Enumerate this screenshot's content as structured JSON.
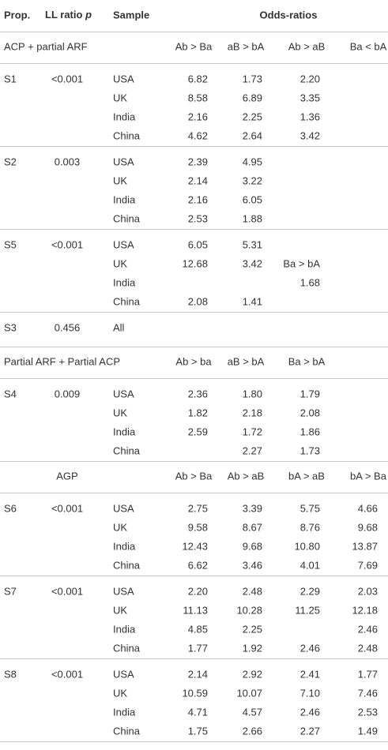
{
  "table": {
    "header": {
      "prop": "Prop.",
      "ll_ratio": "LL ratio",
      "ll_ratio_p": "p",
      "sample": "Sample",
      "odds": "Odds-ratios"
    },
    "sections": [
      {
        "title": "ACP + partial ARF",
        "columns": [
          "Ab > Ba",
          "aB > bA",
          "Ab > aB",
          "Ba < bA"
        ],
        "groups": [
          {
            "prop": "S1",
            "p": "<0.001",
            "rows": [
              [
                "USA",
                "6.82",
                "1.73",
                "2.20",
                null
              ],
              [
                "UK",
                "8.58",
                "6.89",
                "3.35",
                null
              ],
              [
                "India",
                "2.16",
                "2.25",
                "1.36",
                null
              ],
              [
                "China",
                "4.62",
                "2.64",
                "3.42",
                null
              ]
            ]
          },
          {
            "prop": "S2",
            "p": "0.003",
            "rows": [
              [
                "USA",
                "2.39",
                "4.95",
                null,
                null
              ],
              [
                "UK",
                "2.14",
                "3.22",
                null,
                null
              ],
              [
                "India",
                "2.16",
                "6.05",
                null,
                null
              ],
              [
                "China",
                "2.53",
                "1.88",
                null,
                null
              ]
            ]
          },
          {
            "prop": "S5",
            "p": "<0.001",
            "rows": [
              [
                "USA",
                "6.05",
                "5.31",
                null,
                null
              ],
              [
                "UK",
                "12.68",
                "3.42",
                "Ba > bA",
                null
              ],
              [
                "India",
                null,
                null,
                "1.68",
                null
              ],
              [
                "China",
                "2.08",
                "1.41",
                null,
                null
              ]
            ]
          },
          {
            "prop": "S3",
            "p": "0.456",
            "rows": [
              [
                "All",
                null,
                null,
                null,
                null
              ]
            ]
          }
        ]
      },
      {
        "title": "Partial ARF + Partial ACP",
        "columns": [
          "Ab > ba",
          "aB > bA",
          "Ba > bA",
          null
        ],
        "groups": [
          {
            "prop": "S4",
            "p": "0.009",
            "rows": [
              [
                "USA",
                "2.36",
                "1.80",
                "1.79",
                null
              ],
              [
                "UK",
                "1.82",
                "2.18",
                "2.08",
                null
              ],
              [
                "India",
                "2.59",
                "1.72",
                "1.86",
                null
              ],
              [
                "China",
                null,
                "2.27",
                "1.73",
                null
              ]
            ]
          }
        ]
      },
      {
        "title": "AGP",
        "columns": [
          "Ab > Ba",
          "Ab > aB",
          "bA > aB",
          "bA > Ba"
        ],
        "groups": [
          {
            "prop": "S6",
            "p": "<0.001",
            "rows": [
              [
                "USA",
                "2.75",
                "3.39",
                "5.75",
                "4.66"
              ],
              [
                "UK",
                "9.58",
                "8.67",
                "8.76",
                "9.68"
              ],
              [
                "India",
                "12.43",
                "9.68",
                "10.80",
                "13.87"
              ],
              [
                "China",
                "6.62",
                "3.46",
                "4.01",
                "7.69"
              ]
            ]
          },
          {
            "prop": "S7",
            "p": "<0.001",
            "rows": [
              [
                "USA",
                "2.20",
                "2.48",
                "2.29",
                "2.03"
              ],
              [
                "UK",
                "11.13",
                "10.28",
                "11.25",
                "12.18"
              ],
              [
                "India",
                "4.85",
                "2.25",
                null,
                "2.46"
              ],
              [
                "China",
                "1.77",
                "1.92",
                "2.46",
                "2.48"
              ]
            ]
          },
          {
            "prop": "S8",
            "p": "<0.001",
            "rows": [
              [
                "USA",
                "2.14",
                "2.92",
                "2.41",
                "1.77"
              ],
              [
                "UK",
                "10.59",
                "10.07",
                "7.10",
                "7.46"
              ],
              [
                "India",
                "4.71",
                "4.57",
                "2.46",
                "2.53"
              ],
              [
                "China",
                "1.75",
                "2.66",
                "2.27",
                "1.49"
              ]
            ]
          }
        ]
      }
    ]
  }
}
